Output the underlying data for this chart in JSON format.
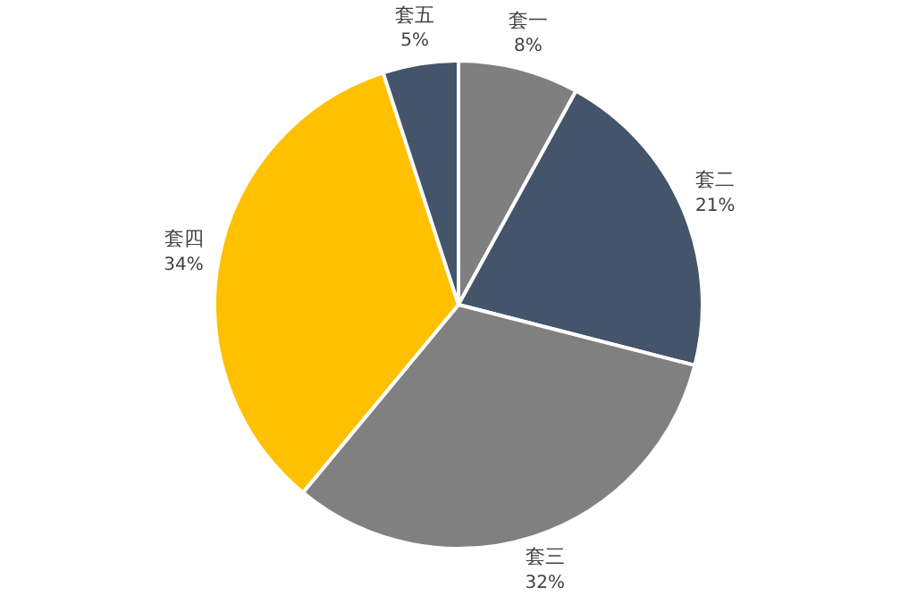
{
  "chart_data": {
    "type": "pie",
    "categories": [
      "套一",
      "套二",
      "套三",
      "套四",
      "套五"
    ],
    "values": [
      8,
      21,
      32,
      34,
      5
    ],
    "colors": [
      "#7f7f7f",
      "#44546a",
      "#808080",
      "#ffc000",
      "#44546a"
    ],
    "value_labels": [
      "8%",
      "21%",
      "32%",
      "34%",
      "5%"
    ],
    "legend": false
  }
}
